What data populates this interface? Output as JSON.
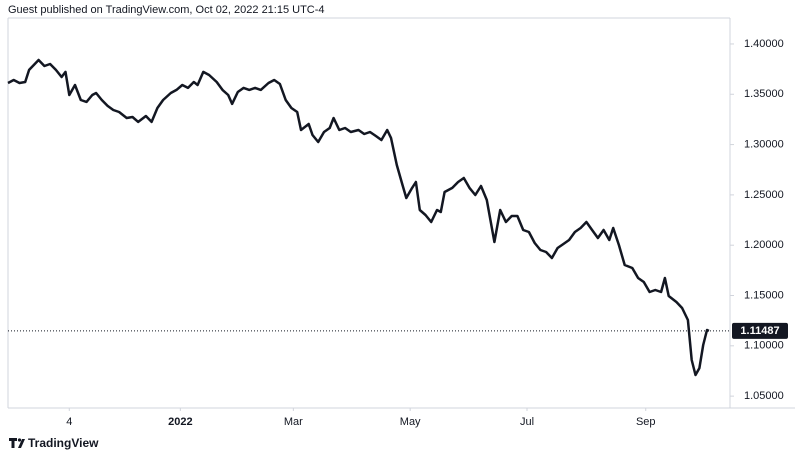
{
  "chart_data": {
    "type": "line",
    "source_text": "Guest published on TradingView.com, Oct 02, 2022 21:15 UTC-4",
    "brand": "TradingView",
    "color": "#131722",
    "xlim": [
      0,
      377
    ],
    "xticks": [
      {
        "value": 32,
        "label": "4"
      },
      {
        "value": 90,
        "label": "2022"
      },
      {
        "value": 149,
        "label": "Mar"
      },
      {
        "value": 210,
        "label": "May"
      },
      {
        "value": 271,
        "label": "Jul"
      },
      {
        "value": 333,
        "label": "Sep"
      }
    ],
    "ylim": [
      1.0382,
      1.4258
    ],
    "yticks": [
      {
        "value": 1.05,
        "label": "1.05000"
      },
      {
        "value": 1.1,
        "label": "1.10000"
      },
      {
        "value": 1.15,
        "label": "1.15000"
      },
      {
        "value": 1.2,
        "label": "1.20000"
      },
      {
        "value": 1.25,
        "label": "1.25000"
      },
      {
        "value": 1.3,
        "label": "1.30000"
      },
      {
        "value": 1.35,
        "label": "1.35000"
      },
      {
        "value": 1.4,
        "label": "1.40000"
      }
    ],
    "grid": false,
    "x": [
      0,
      3,
      6,
      9,
      11,
      16,
      19,
      22,
      25,
      28,
      30,
      32,
      35,
      38,
      41,
      44,
      46,
      49,
      52,
      55,
      58,
      62,
      65,
      68,
      72,
      75,
      78,
      81,
      85,
      88,
      91,
      94,
      97,
      99,
      102,
      105,
      109,
      112,
      115,
      117,
      120,
      123,
      126,
      129,
      132,
      136,
      139,
      142,
      145,
      148,
      151,
      153,
      157,
      159,
      162,
      165,
      168,
      170,
      173,
      176,
      179,
      183,
      186,
      189,
      192,
      195,
      198,
      200,
      203,
      206,
      208,
      211,
      213,
      215,
      218,
      221,
      224,
      226,
      228,
      232,
      235,
      238,
      241,
      244,
      247,
      250,
      254,
      257,
      260,
      263,
      266,
      269,
      272,
      275,
      278,
      281,
      284,
      287,
      290,
      293,
      296,
      299,
      302,
      305,
      308,
      311,
      314,
      316,
      319,
      322,
      326,
      329,
      332,
      335,
      338,
      341,
      343,
      345,
      349,
      352,
      355,
      357,
      359,
      361,
      363,
      365,
      366
    ],
    "values": [
      1.3612,
      1.3642,
      1.3612,
      1.3622,
      1.3742,
      1.3841,
      1.3781,
      1.3801,
      1.3742,
      1.3672,
      1.3722,
      1.3493,
      1.3592,
      1.3443,
      1.3424,
      1.3493,
      1.3513,
      1.3443,
      1.3384,
      1.3344,
      1.3324,
      1.3264,
      1.3274,
      1.3225,
      1.3284,
      1.3225,
      1.3364,
      1.3443,
      1.3513,
      1.3543,
      1.3592,
      1.3563,
      1.3622,
      1.3592,
      1.3722,
      1.3692,
      1.3622,
      1.3543,
      1.3493,
      1.3404,
      1.3523,
      1.3563,
      1.3543,
      1.3563,
      1.3543,
      1.3612,
      1.3642,
      1.3602,
      1.3443,
      1.3364,
      1.3324,
      1.3145,
      1.3205,
      1.3095,
      1.3026,
      1.3125,
      1.3165,
      1.3264,
      1.3145,
      1.3165,
      1.3125,
      1.3145,
      1.3105,
      1.3125,
      1.3086,
      1.3046,
      1.3145,
      1.3066,
      1.2797,
      1.2598,
      1.2469,
      1.2569,
      1.2628,
      1.235,
      1.23,
      1.2231,
      1.235,
      1.233,
      1.2529,
      1.2569,
      1.2628,
      1.2668,
      1.2569,
      1.2499,
      1.2588,
      1.2449,
      1.2032,
      1.235,
      1.2231,
      1.229,
      1.229,
      1.2151,
      1.2131,
      1.2022,
      1.1952,
      1.1932,
      1.1873,
      1.1972,
      1.2012,
      1.2052,
      1.2131,
      1.2171,
      1.2231,
      1.2151,
      1.2072,
      1.2151,
      1.2052,
      1.2171,
      1.2002,
      1.1803,
      1.1773,
      1.1674,
      1.1634,
      1.1535,
      1.1555,
      1.1535,
      1.1674,
      1.1495,
      1.1435,
      1.1376,
      1.1257,
      1.0859,
      1.071,
      1.0779,
      1.1008,
      1.1157,
      1.11487
    ]
  }
}
